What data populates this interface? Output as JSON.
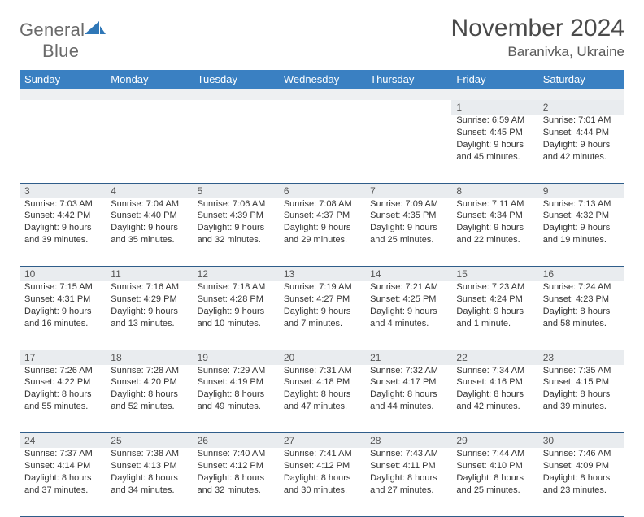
{
  "brand": {
    "name_a": "General",
    "name_b": "Blue"
  },
  "title": "November 2024",
  "location": "Baranivka, Ukraine",
  "colors": {
    "header_bg": "#3a80c2",
    "header_text": "#ffffff",
    "daynum_bg": "#e9ecef",
    "row_divider": "#2f5d8a",
    "brand_gray": "#6a6a6a",
    "brand_blue": "#2f77b7"
  },
  "day_names": [
    "Sunday",
    "Monday",
    "Tuesday",
    "Wednesday",
    "Thursday",
    "Friday",
    "Saturday"
  ],
  "weeks": [
    [
      null,
      null,
      null,
      null,
      null,
      {
        "n": "1",
        "sr": "Sunrise: 6:59 AM",
        "ss": "Sunset: 4:45 PM",
        "d1": "Daylight: 9 hours",
        "d2": "and 45 minutes."
      },
      {
        "n": "2",
        "sr": "Sunrise: 7:01 AM",
        "ss": "Sunset: 4:44 PM",
        "d1": "Daylight: 9 hours",
        "d2": "and 42 minutes."
      }
    ],
    [
      {
        "n": "3",
        "sr": "Sunrise: 7:03 AM",
        "ss": "Sunset: 4:42 PM",
        "d1": "Daylight: 9 hours",
        "d2": "and 39 minutes."
      },
      {
        "n": "4",
        "sr": "Sunrise: 7:04 AM",
        "ss": "Sunset: 4:40 PM",
        "d1": "Daylight: 9 hours",
        "d2": "and 35 minutes."
      },
      {
        "n": "5",
        "sr": "Sunrise: 7:06 AM",
        "ss": "Sunset: 4:39 PM",
        "d1": "Daylight: 9 hours",
        "d2": "and 32 minutes."
      },
      {
        "n": "6",
        "sr": "Sunrise: 7:08 AM",
        "ss": "Sunset: 4:37 PM",
        "d1": "Daylight: 9 hours",
        "d2": "and 29 minutes."
      },
      {
        "n": "7",
        "sr": "Sunrise: 7:09 AM",
        "ss": "Sunset: 4:35 PM",
        "d1": "Daylight: 9 hours",
        "d2": "and 25 minutes."
      },
      {
        "n": "8",
        "sr": "Sunrise: 7:11 AM",
        "ss": "Sunset: 4:34 PM",
        "d1": "Daylight: 9 hours",
        "d2": "and 22 minutes."
      },
      {
        "n": "9",
        "sr": "Sunrise: 7:13 AM",
        "ss": "Sunset: 4:32 PM",
        "d1": "Daylight: 9 hours",
        "d2": "and 19 minutes."
      }
    ],
    [
      {
        "n": "10",
        "sr": "Sunrise: 7:15 AM",
        "ss": "Sunset: 4:31 PM",
        "d1": "Daylight: 9 hours",
        "d2": "and 16 minutes."
      },
      {
        "n": "11",
        "sr": "Sunrise: 7:16 AM",
        "ss": "Sunset: 4:29 PM",
        "d1": "Daylight: 9 hours",
        "d2": "and 13 minutes."
      },
      {
        "n": "12",
        "sr": "Sunrise: 7:18 AM",
        "ss": "Sunset: 4:28 PM",
        "d1": "Daylight: 9 hours",
        "d2": "and 10 minutes."
      },
      {
        "n": "13",
        "sr": "Sunrise: 7:19 AM",
        "ss": "Sunset: 4:27 PM",
        "d1": "Daylight: 9 hours",
        "d2": "and 7 minutes."
      },
      {
        "n": "14",
        "sr": "Sunrise: 7:21 AM",
        "ss": "Sunset: 4:25 PM",
        "d1": "Daylight: 9 hours",
        "d2": "and 4 minutes."
      },
      {
        "n": "15",
        "sr": "Sunrise: 7:23 AM",
        "ss": "Sunset: 4:24 PM",
        "d1": "Daylight: 9 hours",
        "d2": "and 1 minute."
      },
      {
        "n": "16",
        "sr": "Sunrise: 7:24 AM",
        "ss": "Sunset: 4:23 PM",
        "d1": "Daylight: 8 hours",
        "d2": "and 58 minutes."
      }
    ],
    [
      {
        "n": "17",
        "sr": "Sunrise: 7:26 AM",
        "ss": "Sunset: 4:22 PM",
        "d1": "Daylight: 8 hours",
        "d2": "and 55 minutes."
      },
      {
        "n": "18",
        "sr": "Sunrise: 7:28 AM",
        "ss": "Sunset: 4:20 PM",
        "d1": "Daylight: 8 hours",
        "d2": "and 52 minutes."
      },
      {
        "n": "19",
        "sr": "Sunrise: 7:29 AM",
        "ss": "Sunset: 4:19 PM",
        "d1": "Daylight: 8 hours",
        "d2": "and 49 minutes."
      },
      {
        "n": "20",
        "sr": "Sunrise: 7:31 AM",
        "ss": "Sunset: 4:18 PM",
        "d1": "Daylight: 8 hours",
        "d2": "and 47 minutes."
      },
      {
        "n": "21",
        "sr": "Sunrise: 7:32 AM",
        "ss": "Sunset: 4:17 PM",
        "d1": "Daylight: 8 hours",
        "d2": "and 44 minutes."
      },
      {
        "n": "22",
        "sr": "Sunrise: 7:34 AM",
        "ss": "Sunset: 4:16 PM",
        "d1": "Daylight: 8 hours",
        "d2": "and 42 minutes."
      },
      {
        "n": "23",
        "sr": "Sunrise: 7:35 AM",
        "ss": "Sunset: 4:15 PM",
        "d1": "Daylight: 8 hours",
        "d2": "and 39 minutes."
      }
    ],
    [
      {
        "n": "24",
        "sr": "Sunrise: 7:37 AM",
        "ss": "Sunset: 4:14 PM",
        "d1": "Daylight: 8 hours",
        "d2": "and 37 minutes."
      },
      {
        "n": "25",
        "sr": "Sunrise: 7:38 AM",
        "ss": "Sunset: 4:13 PM",
        "d1": "Daylight: 8 hours",
        "d2": "and 34 minutes."
      },
      {
        "n": "26",
        "sr": "Sunrise: 7:40 AM",
        "ss": "Sunset: 4:12 PM",
        "d1": "Daylight: 8 hours",
        "d2": "and 32 minutes."
      },
      {
        "n": "27",
        "sr": "Sunrise: 7:41 AM",
        "ss": "Sunset: 4:12 PM",
        "d1": "Daylight: 8 hours",
        "d2": "and 30 minutes."
      },
      {
        "n": "28",
        "sr": "Sunrise: 7:43 AM",
        "ss": "Sunset: 4:11 PM",
        "d1": "Daylight: 8 hours",
        "d2": "and 27 minutes."
      },
      {
        "n": "29",
        "sr": "Sunrise: 7:44 AM",
        "ss": "Sunset: 4:10 PM",
        "d1": "Daylight: 8 hours",
        "d2": "and 25 minutes."
      },
      {
        "n": "30",
        "sr": "Sunrise: 7:46 AM",
        "ss": "Sunset: 4:09 PM",
        "d1": "Daylight: 8 hours",
        "d2": "and 23 minutes."
      }
    ]
  ]
}
